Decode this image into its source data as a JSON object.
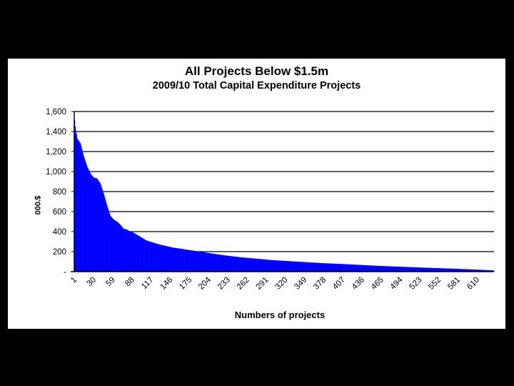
{
  "colors": {
    "background": "#000000",
    "panel": "#ffffff",
    "bar": "#0000ff",
    "grid": "#000000"
  },
  "chart_data": {
    "type": "bar",
    "title": "All Projects Below $1.5m",
    "subtitle": "2009/10 Total Capital Expenditure Projects",
    "xlabel": "Numbers of projects",
    "ylabel": "$'000",
    "ylim": [
      0,
      1600
    ],
    "yticks": [
      0,
      200,
      400,
      600,
      800,
      1000,
      1200,
      1400,
      1600
    ],
    "ytick_labels": [
      "-",
      "200",
      "400",
      "600",
      "800",
      "1,000",
      "1,200",
      "1,400",
      "1,600"
    ],
    "xtick_labels": [
      "1",
      "30",
      "59",
      "88",
      "117",
      "146",
      "175",
      "204",
      "233",
      "262",
      "291",
      "320",
      "349",
      "378",
      "407",
      "436",
      "465",
      "494",
      "523",
      "552",
      "581",
      "610"
    ],
    "x_count": 635,
    "grid": true,
    "profile": {
      "description": "values sorted descending, one bar per project",
      "x": [
        1,
        2,
        5,
        10,
        15,
        20,
        25,
        30,
        35,
        40,
        45,
        50,
        55,
        60,
        65,
        70,
        75,
        80,
        85,
        90,
        100,
        110,
        120,
        130,
        140,
        150,
        160,
        170,
        180,
        200,
        225,
        250,
        275,
        300,
        325,
        350,
        375,
        400,
        430,
        460,
        490,
        520,
        550,
        580,
        610,
        635
      ],
      "values": [
        1510,
        1450,
        1330,
        1280,
        1150,
        1050,
        980,
        940,
        930,
        880,
        780,
        660,
        560,
        520,
        500,
        470,
        430,
        420,
        400,
        390,
        350,
        310,
        290,
        270,
        255,
        240,
        230,
        220,
        210,
        190,
        165,
        145,
        130,
        115,
        105,
        95,
        85,
        78,
        68,
        58,
        50,
        42,
        35,
        28,
        20,
        12
      ]
    }
  }
}
